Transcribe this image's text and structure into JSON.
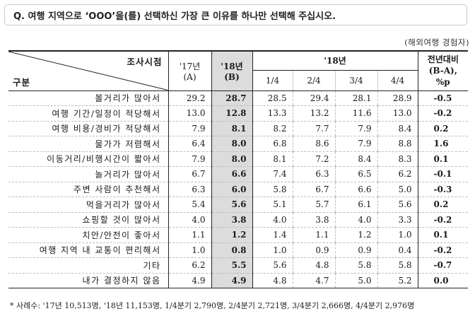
{
  "question": "Q. 여행 지역으로 ‘OOO’을(를) 선택하신 가장 큰 이유를 하나만 선택해 주십시오.",
  "unit": "(해외여행 경험자)",
  "header": {
    "corner_top": "조사시점",
    "corner_bottom": "구분",
    "col_17": "'17년",
    "col_17_sub": "(A)",
    "col_18": "'18년",
    "col_18_sub": "(B)",
    "quarter_group": "'18년",
    "quarters": [
      "1/4",
      "2/4",
      "3/4",
      "4/4"
    ],
    "change_line1": "전년대비",
    "change_line2": "(B-A),",
    "change_line3": "%p"
  },
  "rows": [
    {
      "label": "볼거리가 많아서",
      "y17": "29.2",
      "y18": "28.7",
      "q1": "28.5",
      "q2": "29.4",
      "q3": "28.1",
      "q4": "28.9",
      "chg": "-0.5"
    },
    {
      "label": "여행 기간/일정이 적당해서",
      "y17": "13.0",
      "y18": "12.8",
      "q1": "13.3",
      "q2": "13.2",
      "q3": "11.6",
      "q4": "13.0",
      "chg": "-0.2"
    },
    {
      "label": "여행 비용/경비가 적당해서",
      "y17": "7.9",
      "y18": "8.1",
      "q1": "8.2",
      "q2": "7.7",
      "q3": "7.9",
      "q4": "8.4",
      "chg": "0.2"
    },
    {
      "label": "물가가 저렴해서",
      "y17": "6.4",
      "y18": "8.0",
      "q1": "6.8",
      "q2": "8.6",
      "q3": "7.9",
      "q4": "8.8",
      "chg": "1.6"
    },
    {
      "label": "이동거리/비행시간이 짧아서",
      "y17": "7.9",
      "y18": "8.0",
      "q1": "8.1",
      "q2": "7.2",
      "q3": "8.4",
      "q4": "8.3",
      "chg": "0.1"
    },
    {
      "label": "놀거리가 많아서",
      "y17": "6.7",
      "y18": "6.6",
      "q1": "7.4",
      "q2": "6.3",
      "q3": "6.5",
      "q4": "6.2",
      "chg": "-0.1"
    },
    {
      "label": "주변 사람이 추천해서",
      "y17": "6.3",
      "y18": "6.0",
      "q1": "5.8",
      "q2": "6.7",
      "q3": "6.6",
      "q4": "5.0",
      "chg": "-0.3"
    },
    {
      "label": "먹을거리가 많아서",
      "y17": "5.4",
      "y18": "5.6",
      "q1": "5.1",
      "q2": "5.7",
      "q3": "6.1",
      "q4": "5.6",
      "chg": "0.2"
    },
    {
      "label": "쇼핑할 것이 많아서",
      "y17": "4.0",
      "y18": "3.8",
      "q1": "4.0",
      "q2": "3.8",
      "q3": "4.0",
      "q4": "3.3",
      "chg": "-0.2"
    },
    {
      "label": "치안/안전이 좋아서",
      "y17": "1.1",
      "y18": "1.2",
      "q1": "1.4",
      "q2": "1.1",
      "q3": "1.2",
      "q4": "1.0",
      "chg": "0.1"
    },
    {
      "label": "여행 지역 내 교통이 편리해서",
      "y17": "1.0",
      "y18": "0.8",
      "q1": "1.0",
      "q2": "0.9",
      "q3": "0.9",
      "q4": "0.4",
      "chg": "-0.2"
    },
    {
      "label": "기타",
      "y17": "6.2",
      "y18": "5.5",
      "q1": "5.6",
      "q2": "4.8",
      "q3": "5.8",
      "q4": "5.8",
      "chg": "-0.7"
    },
    {
      "label": "내가 결정하지 않음",
      "y17": "4.9",
      "y18": "4.9",
      "q1": "4.8",
      "q2": "4.7",
      "q3": "5.0",
      "q4": "5.2",
      "chg": "0.0"
    }
  ],
  "footnote": "* 사례수: '17년 10,513명, '18년 11,153명, 1/4분기 2,790명, 2/4분기 2,721명, 3/4분기 2,666명, 4/4분기 2,976명"
}
